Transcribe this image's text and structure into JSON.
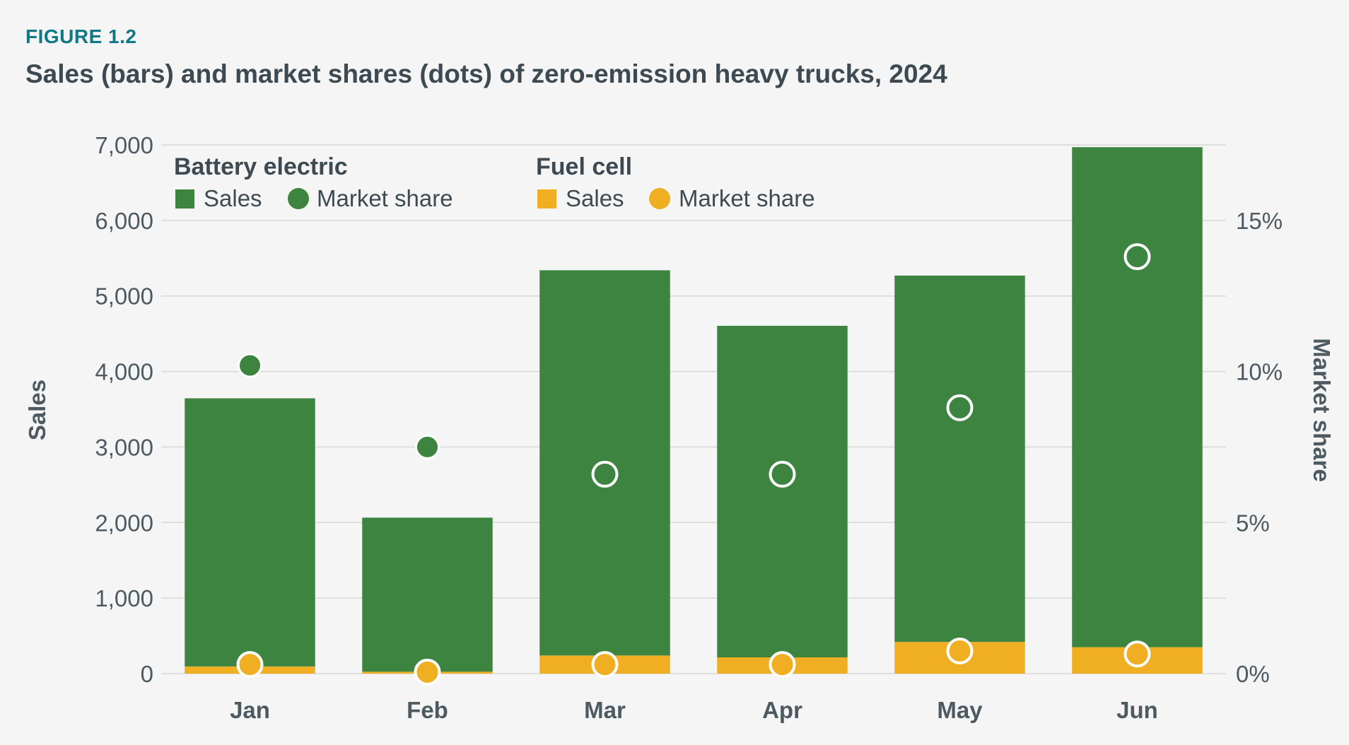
{
  "figure": {
    "label": "FIGURE 1.2",
    "title": "Sales (bars) and market shares (dots) of zero-emission heavy trucks, 2024"
  },
  "colors": {
    "battery_electric": "#3c8440",
    "fuel_cell": "#f0ae22",
    "gridline": "#d8d8d8",
    "text": "#4e5a62"
  },
  "legend": {
    "placement": "top-left",
    "groups": [
      {
        "heading": "Battery electric",
        "items": [
          {
            "label": "Sales",
            "marker": "square"
          },
          {
            "label": "Market share",
            "marker": "circle"
          }
        ]
      },
      {
        "heading": "Fuel cell",
        "items": [
          {
            "label": "Sales",
            "marker": "square"
          },
          {
            "label": "Market share",
            "marker": "circle"
          }
        ]
      }
    ]
  },
  "chart_data": {
    "type": "bar",
    "stacked": true,
    "categories": [
      "Jan",
      "Feb",
      "Mar",
      "Apr",
      "May",
      "Jun"
    ],
    "ylabel": "Sales",
    "y2label": "Market share",
    "ylim": [
      0,
      7000
    ],
    "y2lim": [
      0,
      17.5
    ],
    "yticks": [
      0,
      1000,
      2000,
      3000,
      4000,
      5000,
      6000,
      7000
    ],
    "ytick_labels": [
      "0",
      "1,000",
      "2,000",
      "3,000",
      "4,000",
      "5,000",
      "6,000",
      "7,000"
    ],
    "y2ticks": [
      0,
      5,
      10,
      15
    ],
    "y2tick_labels": [
      "0%",
      "5%",
      "10%",
      "15%"
    ],
    "grid": true,
    "series": [
      {
        "name": "Battery electric Sales",
        "kind": "bar",
        "axis": "left",
        "values": [
          3550,
          2040,
          5100,
          4390,
          4850,
          6620
        ]
      },
      {
        "name": "Fuel cell Sales",
        "kind": "bar",
        "axis": "left",
        "values": [
          95,
          25,
          240,
          215,
          420,
          350
        ]
      },
      {
        "name": "Battery electric Market share",
        "kind": "dot",
        "axis": "right",
        "values": [
          10.2,
          7.5,
          6.6,
          6.6,
          8.8,
          13.8
        ]
      },
      {
        "name": "Fuel cell Market share",
        "kind": "dot",
        "axis": "right",
        "values": [
          0.3,
          0.05,
          0.3,
          0.3,
          0.75,
          0.65
        ]
      }
    ]
  }
}
